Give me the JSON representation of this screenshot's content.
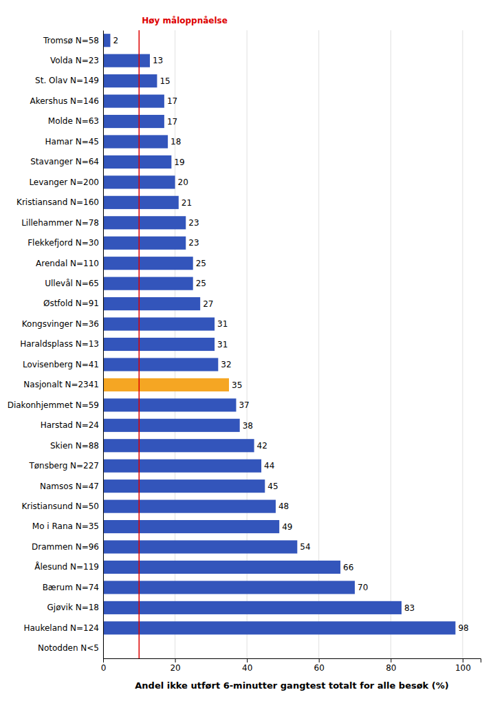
{
  "chart_data": {
    "type": "bar",
    "orientation": "horizontal",
    "categories": [
      "Notodden N<5",
      "Haukeland N=124",
      "Gjøvik N=18",
      "Bærum N=74",
      "Ålesund N=119",
      "Drammen N=96",
      "Mo i Rana N=35",
      "Kristiansund N=50",
      "Namsos N=47",
      "Tønsberg N=227",
      "Skien N=88",
      "Harstad N=24",
      "Diakonhjemmet N=59",
      "Nasjonalt N=2341",
      "Lovisenberg N=41",
      "Haraldsplass N=13",
      "Kongsvinger N=36",
      "Østfold N=91",
      "Ullevål N=65",
      "Arendal N=110",
      "Flekkefjord N=30",
      "Lillehammer N=78",
      "Kristiansand N=160",
      "Levanger N=200",
      "Stavanger N=64",
      "Hamar N=45",
      "Molde N=63",
      "Akershus N=146",
      "St. Olav N=149",
      "Volda N=23",
      "Tromsø N=58"
    ],
    "values": [
      0,
      98,
      83,
      70,
      66,
      54,
      49,
      48,
      45,
      44,
      42,
      38,
      37,
      35,
      32,
      31,
      31,
      27,
      25,
      25,
      23,
      23,
      21,
      20,
      19,
      18,
      17,
      17,
      15,
      13,
      2
    ],
    "value_labels": [
      null,
      "98",
      "83",
      "70",
      "66",
      "54",
      "49",
      "48",
      "45",
      "44",
      "42",
      "38",
      "37",
      "35",
      "32",
      "31",
      "31",
      "27",
      "25",
      "25",
      "23",
      "23",
      "21",
      "20",
      "19",
      "18",
      "17",
      "17",
      "15",
      "13",
      "2"
    ],
    "data_labels": true,
    "colors": [
      "#3355bb",
      "#3355bb",
      "#3355bb",
      "#3355bb",
      "#3355bb",
      "#3355bb",
      "#3355bb",
      "#3355bb",
      "#3355bb",
      "#3355bb",
      "#3355bb",
      "#3355bb",
      "#3355bb",
      "#f5a623",
      "#3355bb",
      "#3355bb",
      "#3355bb",
      "#3355bb",
      "#3355bb",
      "#3355bb",
      "#3355bb",
      "#3355bb",
      "#3355bb",
      "#3355bb",
      "#3355bb",
      "#3355bb",
      "#3355bb",
      "#3355bb",
      "#3355bb",
      "#3355bb",
      "#3355bb"
    ],
    "x_label": "Andel ikke utført 6-minutter gangtest totalt for alle besøk (%)",
    "xlim": [
      0,
      105
    ],
    "xticks": [
      0,
      20,
      40,
      60,
      80,
      100
    ],
    "grid": true,
    "annotations": [
      {
        "x": 10,
        "text": "Høy måloppnåelse",
        "color": "#dd0000"
      }
    ]
  }
}
